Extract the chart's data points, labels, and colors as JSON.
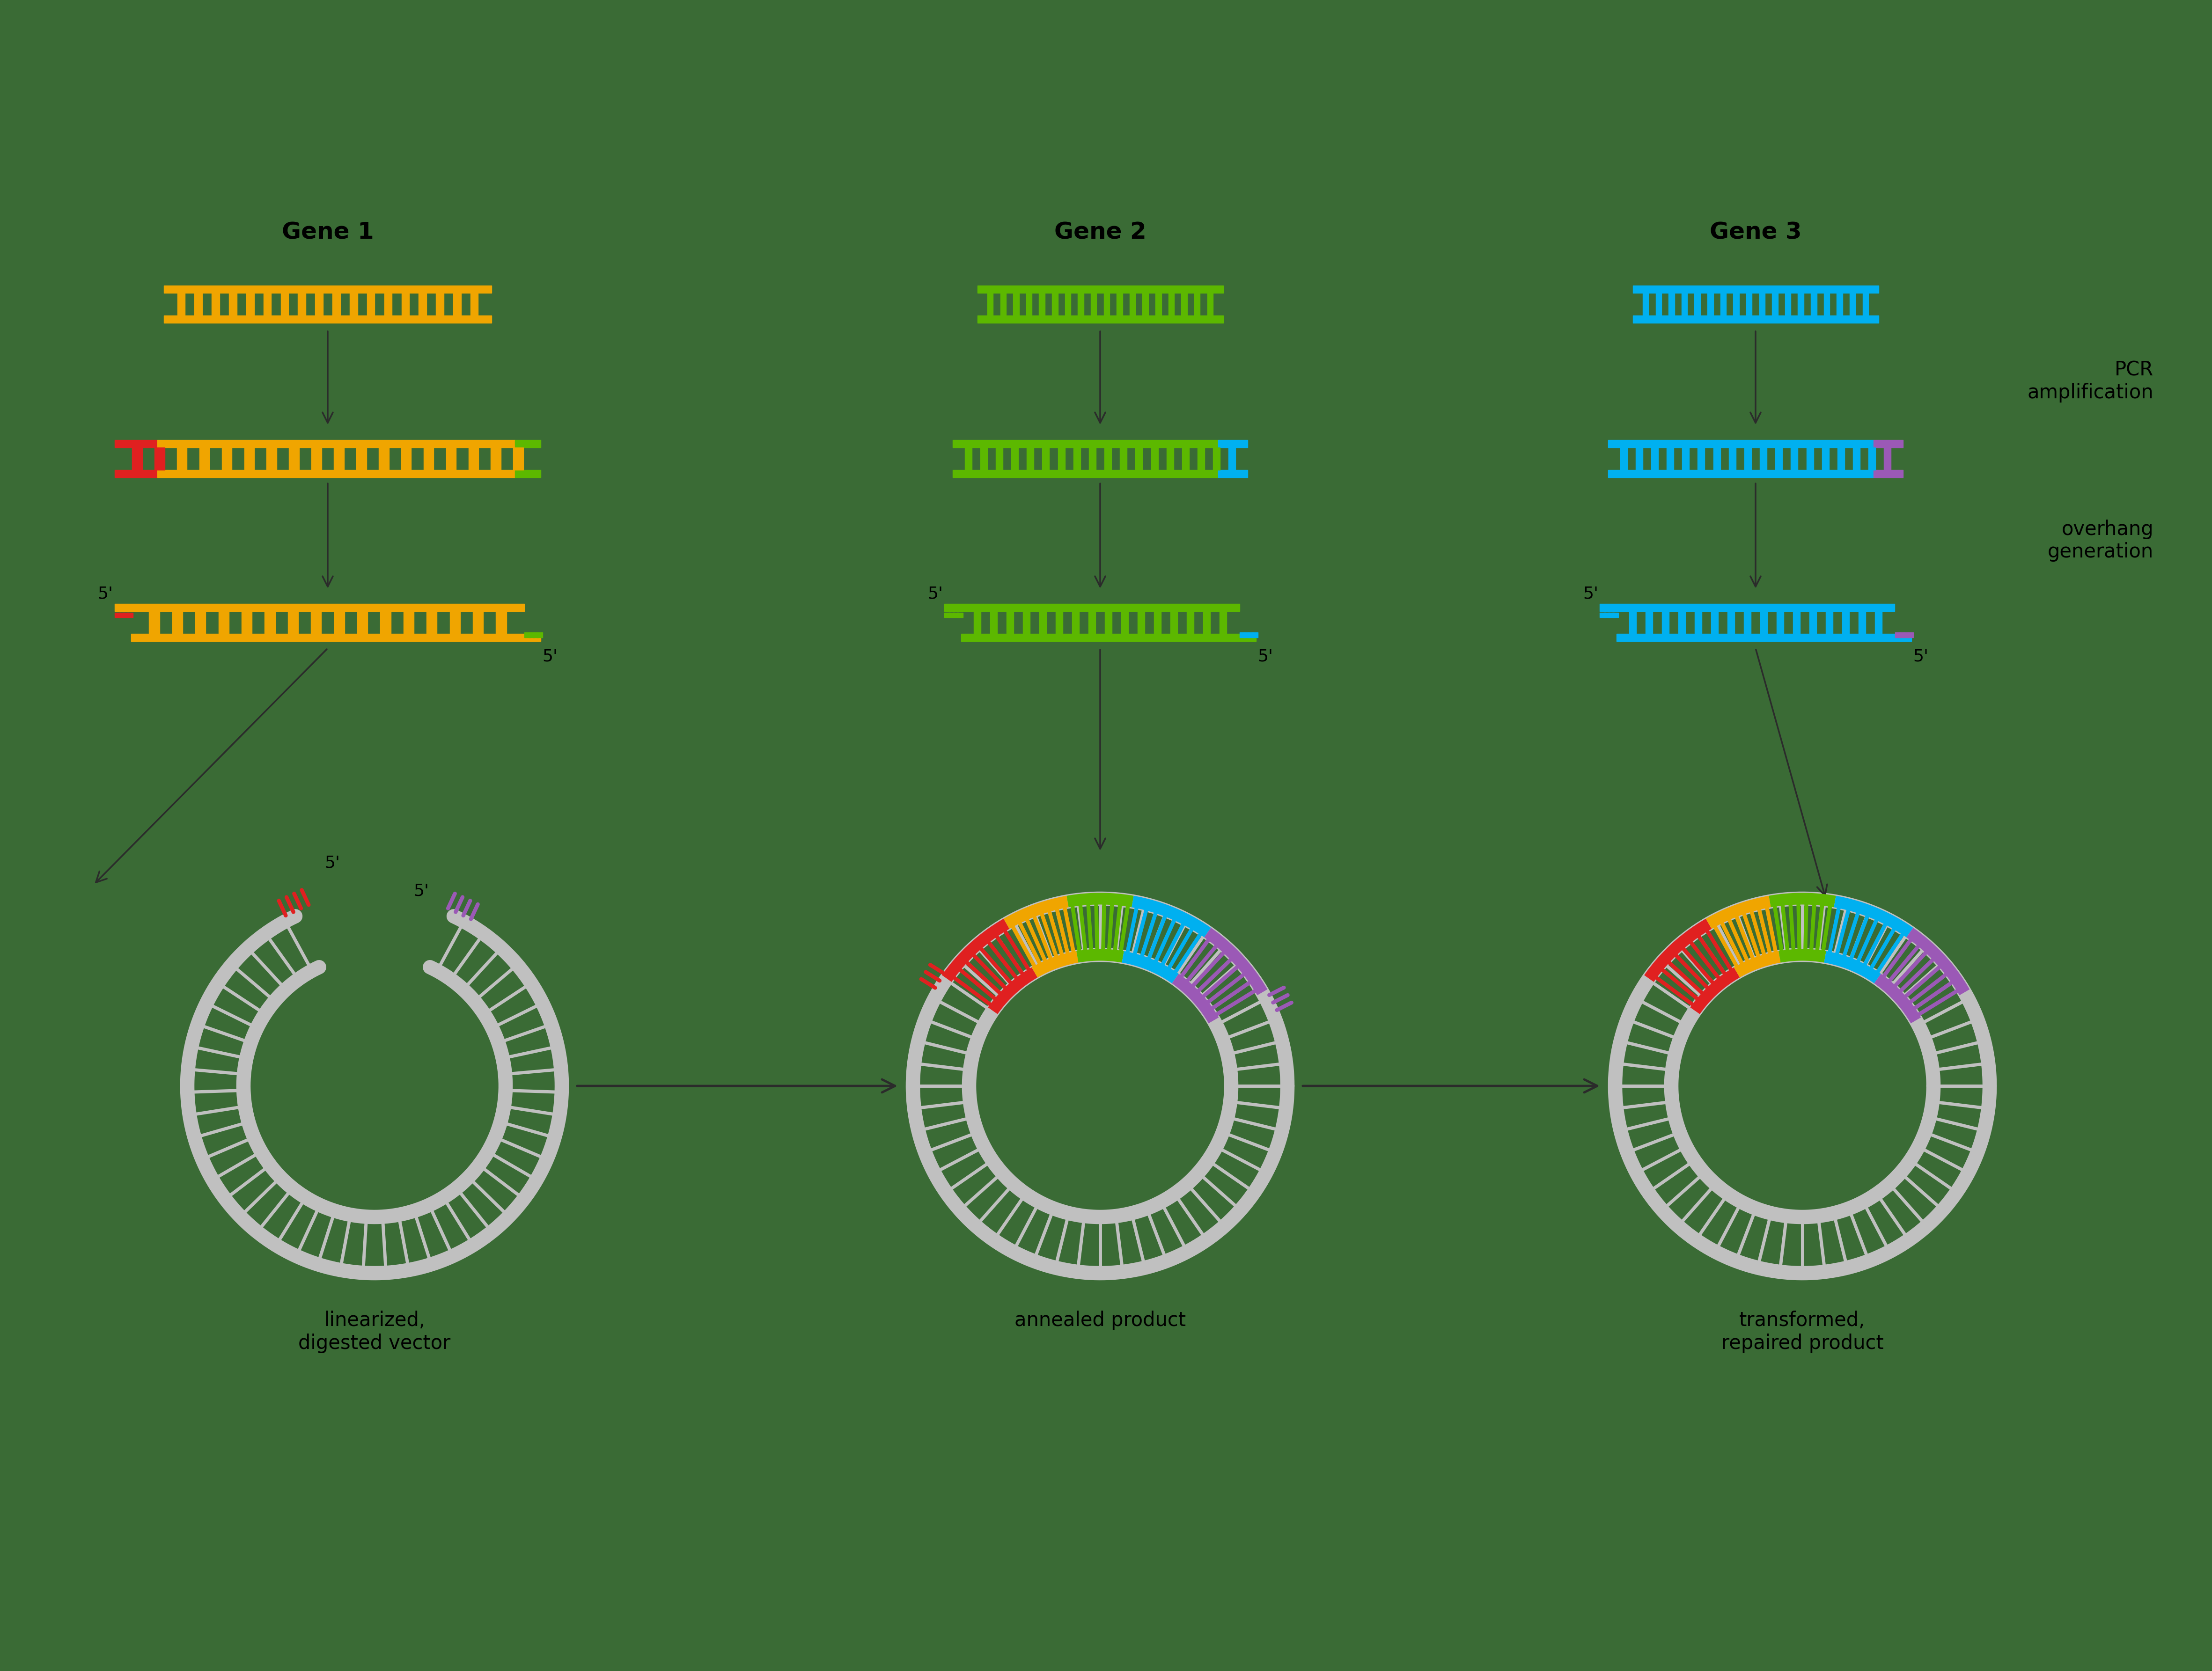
{
  "bg_color": "#3a6b35",
  "text_color": "#000000",
  "white_color": "#ffffff",
  "arrow_color": "#2b2b2b",
  "gene1_color": "#f0a500",
  "gene2_color": "#5cb800",
  "gene3_color": "#00b0f0",
  "red_color": "#e02020",
  "purple_color": "#9b59b6",
  "gray_color": "#c0c0c0",
  "orange_color": "#f0a500",
  "green_color": "#5cb800",
  "blue_color": "#00b0f0",
  "gene1_label": "Gene 1",
  "gene2_label": "Gene 2",
  "gene3_label": "Gene 3",
  "pcr_label": "PCR\namplification",
  "overhang_label": "overhang\ngeneration",
  "linearized_label": "linearized,\ndigested vector",
  "annealed_label": "annealed product",
  "transformed_label": "transformed,\nrepaired product"
}
